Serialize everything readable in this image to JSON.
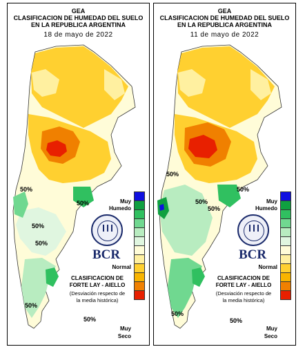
{
  "header": {
    "org": "GEA",
    "title_line1": "CLASIFICACION DE HUMEDAD DEL SUELO",
    "title_line2": "EN LA REPUBLICA ARGENTINA"
  },
  "maps": [
    {
      "date": "18 de mayo de 2022",
      "contour_labels": [
        "50%",
        "50%",
        "50%",
        "50%",
        "50%",
        "50%"
      ]
    },
    {
      "date": "11 de mayo de 2022",
      "contour_labels": [
        "50%",
        "50%",
        "50%",
        "50%",
        "50%",
        "50%"
      ]
    }
  ],
  "legend": {
    "top_label_1": "Muy",
    "top_label_2": "Humedo",
    "mid_label": "Normal",
    "bottom_label_1": "Muy",
    "bottom_label_2": "Seco",
    "colors": [
      "#1010e0",
      "#10a040",
      "#30c060",
      "#70d890",
      "#b8ecc0",
      "#e0f6e0",
      "#fffcd8",
      "#fff0a0",
      "#ffd030",
      "#f8b400",
      "#f08000",
      "#e82000"
    ]
  },
  "branding": {
    "logo_text": "BCR",
    "credit_1": "CLASIFICACION DE",
    "credit_2": "FORTE LAY - AIELLO",
    "credit_3": "(Desviación respecto de",
    "credit_4": "la media histórica)"
  },
  "colors": {
    "very_dry": "#e82000",
    "dry": "#f08000",
    "moderately_dry": "#ffd030",
    "slightly_dry": "#fff0a0",
    "normal": "#fffcd8",
    "slightly_wet": "#b8ecc0",
    "wet": "#30c060",
    "very_wet": "#1010e0"
  }
}
